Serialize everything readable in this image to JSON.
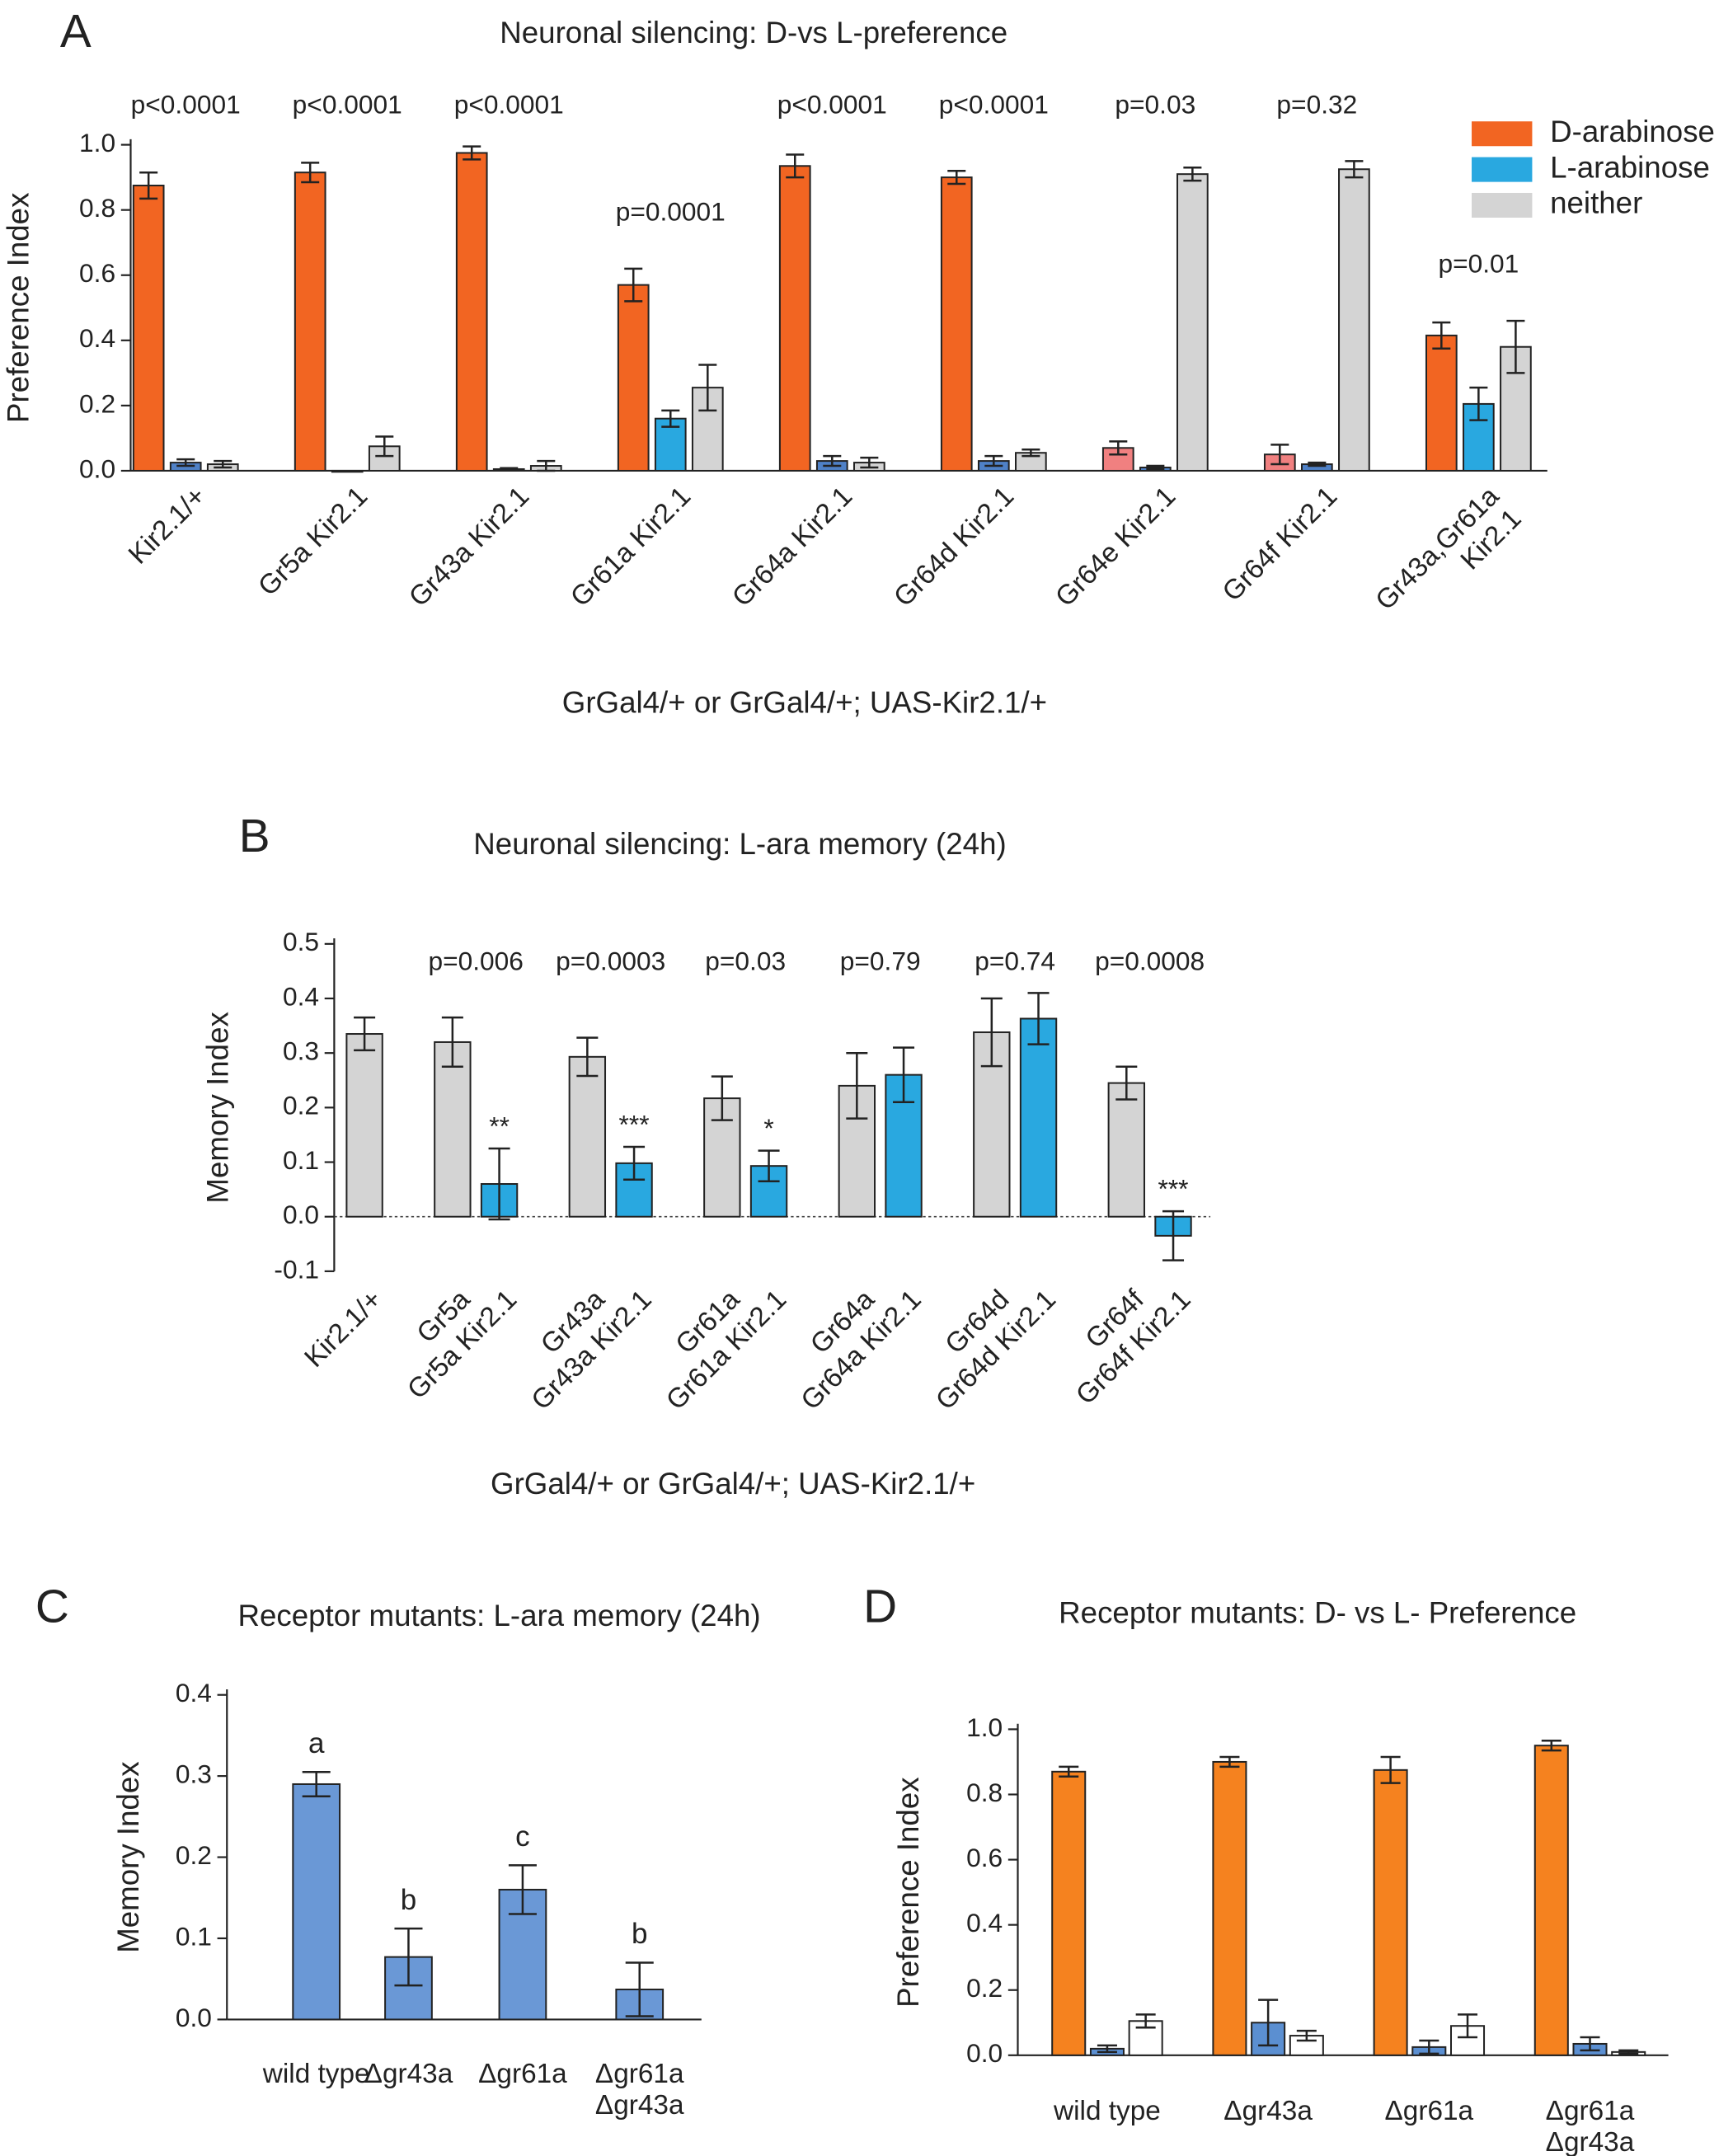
{
  "chart_data": [
    {
      "type": "bar",
      "panel": "A",
      "title": "Neuronal silencing: D-vs L-preference",
      "ylabel": "Preference Index",
      "xlabel": "GrGal4/+ or GrGal4/+; UAS-Kir2.1/+",
      "categories": [
        "Kir2.1/+",
        "Gr5a Kir2.1",
        "Gr43a Kir2.1",
        "Gr61a Kir2.1",
        "Gr64a Kir2.1",
        "Gr64d Kir2.1",
        "Gr64e Kir2.1",
        "Gr64f Kir2.1",
        [
          "Gr43a,Gr61a",
          "Kir2.1"
        ]
      ],
      "series": [
        {
          "name": "D-arabinose",
          "color": "#f26522",
          "colors": [
            "#f26522",
            "#f26522",
            "#f26522",
            "#f26522",
            "#f26522",
            "#f26522",
            "#f08080",
            "#f08080",
            "#f26522"
          ],
          "values": [
            0.875,
            0.915,
            0.975,
            0.57,
            0.935,
            0.9,
            0.07,
            0.05,
            0.415
          ],
          "errors": [
            0.04,
            0.03,
            0.02,
            0.05,
            0.035,
            0.02,
            0.02,
            0.03,
            0.04
          ]
        },
        {
          "name": "L-arabinose",
          "color": "#29a8e0",
          "colors": [
            "#4f81c7",
            "#4f81c7",
            "#4f81c7",
            "#29a8e0",
            "#4f81c7",
            "#4f81c7",
            "#4f81c7",
            "#4f81c7",
            "#29a8e0"
          ],
          "values": [
            0.025,
            0.0,
            0.005,
            0.16,
            0.03,
            0.03,
            0.01,
            0.02,
            0.205
          ],
          "errors": [
            0.01,
            0,
            0.003,
            0.025,
            0.015,
            0.015,
            0.005,
            0.005,
            0.05
          ]
        },
        {
          "name": "neither",
          "color": "#d4d4d4",
          "values": [
            0.02,
            0.075,
            0.015,
            0.255,
            0.025,
            0.055,
            0.91,
            0.925,
            0.38
          ],
          "errors": [
            0.01,
            0.03,
            0.015,
            0.07,
            0.015,
            0.01,
            0.02,
            0.025,
            0.08
          ]
        }
      ],
      "p_values": [
        "p<0.0001",
        "p<0.0001",
        "p<0.0001",
        "p=0.0001",
        "p<0.0001",
        "p<0.0001",
        "p=0.03",
        "p=0.32",
        "p=0.01"
      ],
      "ylim": [
        0,
        1
      ],
      "yticks": [
        {
          "value": 0,
          "label": "0.0"
        },
        0.2,
        0.4,
        0.6,
        0.8,
        {
          "value": 1,
          "label": "1.0"
        }
      ],
      "legend": "top-right"
    },
    {
      "type": "bar",
      "panel": "B",
      "title": "Neuronal silencing: L-ara memory (24h)",
      "ylabel": "Memory Index",
      "xlabel": "GrGal4/+ or GrGal4/+; UAS-Kir2.1/+",
      "categories": [
        "Kir2.1/+",
        "Gr5a",
        "Gr5a Kir2.1",
        "Gr43a",
        "Gr43a Kir2.1",
        "Gr61a",
        "Gr61a Kir2.1",
        "Gr64a",
        "Gr64a Kir2.1",
        "Gr64d",
        "Gr64d Kir2.1",
        "Gr64f",
        "Gr64f Kir2.1"
      ],
      "series": [
        {
          "colors": [
            "#d4d4d4",
            "#d4d4d4",
            "#29a8e0",
            "#d4d4d4",
            "#29a8e0",
            "#d4d4d4",
            "#29a8e0",
            "#d4d4d4",
            "#29a8e0",
            "#d4d4d4",
            "#29a8e0",
            "#d4d4d4",
            "#29a8e0"
          ],
          "values": [
            0.335,
            0.32,
            0.06,
            0.293,
            0.098,
            0.217,
            0.093,
            0.24,
            0.26,
            0.338,
            0.363,
            0.245,
            -0.035
          ],
          "errors": [
            0.03,
            0.045,
            0.065,
            0.035,
            0.03,
            0.04,
            0.028,
            0.06,
            0.05,
            0.062,
            0.047,
            0.03,
            0.045
          ]
        }
      ],
      "p_values": [
        null,
        null,
        "p=0.006",
        null,
        "p=0.0003",
        null,
        "p=0.03",
        null,
        "p=0.79",
        null,
        "p=0.74",
        null,
        "p=0.0008"
      ],
      "significance": [
        null,
        null,
        "**",
        null,
        "***",
        null,
        "*",
        null,
        null,
        null,
        null,
        null,
        "***"
      ],
      "ylim": [
        -0.1,
        0.5
      ],
      "yticks": [
        -0.1,
        {
          "value": 0,
          "label": "0.0"
        },
        0.1,
        0.2,
        0.3,
        0.4,
        0.5
      ],
      "zero_line": true
    },
    {
      "type": "bar",
      "panel": "C",
      "title": "Receptor mutants: L-ara memory (24h)",
      "ylabel": "Memory Index",
      "categories": [
        "wild type",
        "Δgr43a",
        "Δgr61a",
        [
          "Δgr61a",
          "Δgr43a"
        ]
      ],
      "series": [
        {
          "color": "#6a98d6",
          "values": [
            0.29,
            0.077,
            0.16,
            0.037
          ],
          "errors": [
            0.015,
            0.035,
            0.03,
            0.033
          ]
        }
      ],
      "letters": [
        "a",
        "b",
        "c",
        "b"
      ],
      "ylim": [
        0,
        0.4
      ],
      "yticks": [
        {
          "value": 0,
          "label": "0.0"
        },
        0.1,
        0.2,
        0.3,
        0.4
      ]
    },
    {
      "type": "bar",
      "panel": "D",
      "title": "Receptor mutants: D- vs L- Preference",
      "ylabel": "Preference Index",
      "categories": [
        "wild type",
        "Δgr43a",
        "Δgr61a",
        [
          "Δgr61a",
          "Δgr43a"
        ]
      ],
      "series": [
        {
          "color": "#f5821f",
          "values": [
            0.87,
            0.9,
            0.875,
            0.95
          ],
          "errors": [
            0.015,
            0.015,
            0.04,
            0.015
          ]
        },
        {
          "color": "#5b8fd1",
          "values": [
            0.02,
            0.1,
            0.025,
            0.035
          ],
          "errors": [
            0.01,
            0.07,
            0.02,
            0.02
          ]
        },
        {
          "color": "#ffffff",
          "values": [
            0.105,
            0.06,
            0.09,
            0.01
          ],
          "errors": [
            0.02,
            0.015,
            0.035,
            0.005
          ]
        }
      ],
      "ylim": [
        0,
        1
      ],
      "yticks": [
        {
          "value": 0,
          "label": "0.0"
        },
        0.2,
        0.4,
        0.6,
        0.8,
        {
          "value": 1,
          "label": "1.0"
        }
      ]
    }
  ]
}
